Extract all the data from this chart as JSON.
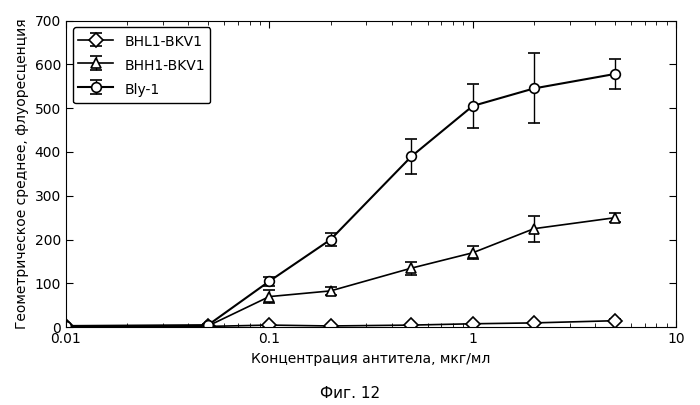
{
  "title": "",
  "xlabel": "Концентрация антитела, мкг/мл",
  "ylabel": "Геометрическое среднее, флуоресценция",
  "caption": "Фиг. 12",
  "xlim": [
    0.01,
    10
  ],
  "ylim": [
    0,
    700
  ],
  "yticks": [
    0,
    100,
    200,
    300,
    400,
    500,
    600,
    700
  ],
  "series": [
    {
      "label": "BHL1-BKV1",
      "marker": "D",
      "x": [
        0.01,
        0.05,
        0.1,
        0.2,
        0.5,
        1.0,
        2.0,
        5.0
      ],
      "y": [
        2,
        2,
        5,
        3,
        5,
        8,
        10,
        15
      ],
      "yerr": [
        1,
        1,
        2,
        1,
        2,
        2,
        3,
        3
      ],
      "color": "#000000",
      "linewidth": 1.2,
      "markersize": 7
    },
    {
      "label": "BHH1-BKV1",
      "marker": "^",
      "x": [
        0.01,
        0.05,
        0.1,
        0.2,
        0.5,
        1.0,
        2.0,
        5.0
      ],
      "y": [
        2,
        3,
        70,
        83,
        135,
        170,
        225,
        250
      ],
      "yerr": [
        1,
        1,
        15,
        10,
        15,
        15,
        30,
        10
      ],
      "color": "#000000",
      "linewidth": 1.2,
      "markersize": 7
    },
    {
      "label": "Bly-1",
      "marker": "o",
      "x": [
        0.01,
        0.05,
        0.1,
        0.2,
        0.5,
        1.0,
        2.0,
        5.0
      ],
      "y": [
        3,
        5,
        105,
        200,
        390,
        505,
        545,
        578
      ],
      "yerr": [
        1,
        2,
        10,
        15,
        40,
        50,
        80,
        35
      ],
      "color": "#000000",
      "linewidth": 1.5,
      "markersize": 7
    }
  ],
  "background_color": "#ffffff",
  "legend_fontsize": 10,
  "axis_fontsize": 10,
  "label_fontsize": 10,
  "caption_fontsize": 11
}
